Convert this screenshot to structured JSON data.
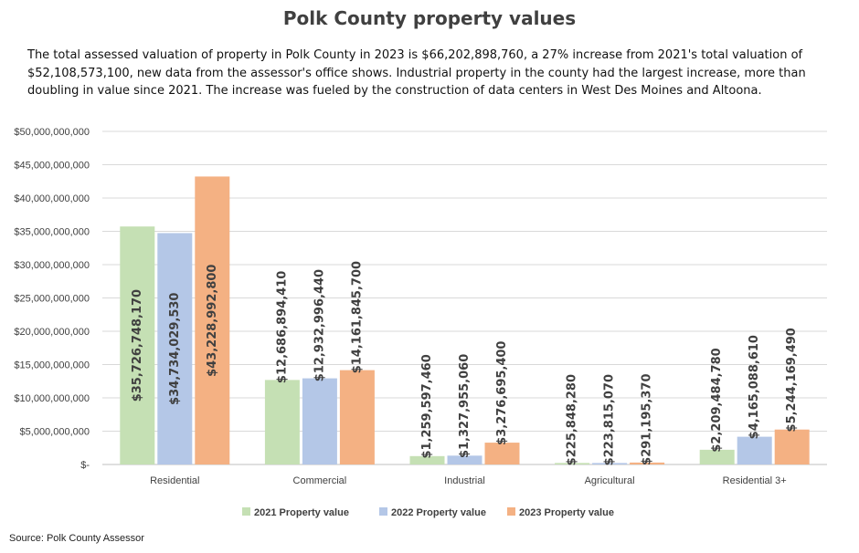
{
  "header": {
    "title": "Polk County property values",
    "description": "The total assessed valuation of property in Polk County in 2023 is $66,202,898,760, a 27% increase from 2021's total valuation of $52,108,573,100, new data from the assessor's office shows. Industrial property in the county had the largest increase, more than doubling in value since 2021. The increase was fueled by the construction of data centers in West Des Moines and Altoona."
  },
  "footer": {
    "source": "Source: Polk County Assessor"
  },
  "chart_data": {
    "type": "bar",
    "categories": [
      "Residential",
      "Commercial",
      "Industrial",
      "Agricultural",
      "Residential 3+"
    ],
    "series": [
      {
        "name": "2021  Property value",
        "color": "#c5e0b4",
        "values": [
          35726748170,
          12686894410,
          1259597460,
          225848280,
          2209484780
        ],
        "labels": [
          "$35,726,748,170",
          "$12,686,894,410",
          "$1,259,597,460",
          "$225,848,280",
          "$2,209,484,780"
        ]
      },
      {
        "name": "2022  Property value",
        "color": "#b4c7e7",
        "values": [
          34734029530,
          12932996440,
          1327955060,
          223815070,
          4165088610
        ],
        "labels": [
          "$34,734,029,530",
          "$12,932,996,440",
          "$1,327,955,060",
          "$223,815,070",
          "$4,165,088,610"
        ]
      },
      {
        "name": "2023  Property value",
        "color": "#f4b183",
        "values": [
          43228992800,
          14161845700,
          3276695400,
          291195370,
          5244169490
        ],
        "labels": [
          "$43,228,992,800",
          "$14,161,845,700",
          "$3,276,695,400",
          "$291,195,370",
          "$5,244,169,490"
        ]
      }
    ],
    "ylim": [
      0,
      50000000000
    ],
    "yticks": [
      0,
      5000000000,
      10000000000,
      15000000000,
      20000000000,
      25000000000,
      30000000000,
      35000000000,
      40000000000,
      45000000000,
      50000000000
    ],
    "ytick_labels": [
      "$-",
      "$5,000,000,000",
      "$10,000,000,000",
      "$15,000,000,000",
      "$20,000,000,000",
      "$25,000,000,000",
      "$30,000,000,000",
      "$35,000,000,000",
      "$40,000,000,000",
      "$45,000,000,000",
      "$50,000,000,000"
    ],
    "grid": true,
    "legend_position": "bottom",
    "gridline_color": "#d9d9d9",
    "label_color": "#404040"
  }
}
